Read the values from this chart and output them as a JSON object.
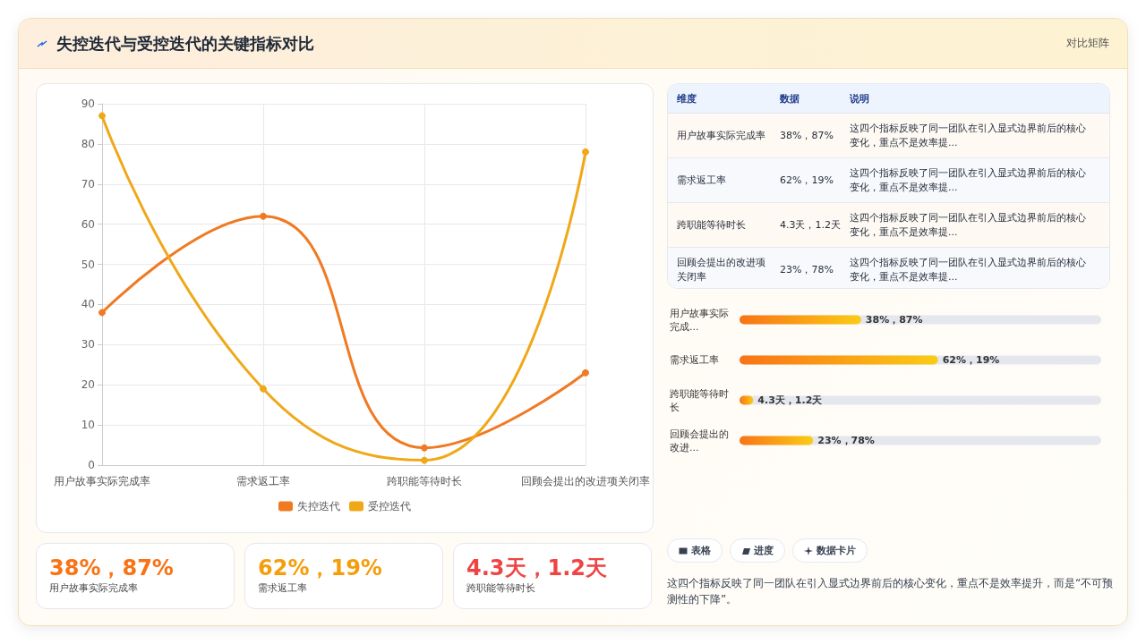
{
  "chart_data": [
    {
      "type": "line",
      "title": "失控迭代与受控迭代的关键指标对比",
      "annotations": [
        "对比矩阵"
      ],
      "categories": [
        "用户故事实际完成率",
        "需求返工率",
        "跨职能等待时长",
        "回顾会提出的改进项关闭率"
      ],
      "series": [
        {
          "name": "失控迭代",
          "color": "#f07a22",
          "values": [
            38,
            62,
            4.3,
            23
          ]
        },
        {
          "name": "受控迭代",
          "color": "#f0a818",
          "values": [
            87,
            19,
            1.2,
            78
          ]
        }
      ],
      "ylim": [
        0,
        90
      ],
      "yticks": [
        0,
        10,
        20,
        30,
        40,
        50,
        60,
        70,
        80,
        90
      ],
      "grid": true,
      "legend": "bottom",
      "marker": "circle"
    },
    {
      "type": "other",
      "categories": [
        "维度",
        "数据",
        "说明"
      ],
      "cell_labels": [
        [
          "用户故事实际完成率",
          "38%，87%",
          "这四个指标反映了同一团队在引入显式边界前后的核心变化，重点不是效率提..."
        ],
        [
          "需求返工率",
          "62%，19%",
          "这四个指标反映了同一团队在引入显式边界前后的核心变化，重点不是效率提..."
        ],
        [
          "跨职能等待时长",
          "4.3天，1.2天",
          "这四个指标反映了同一团队在引入显式边界前后的核心变化，重点不是效率提..."
        ],
        [
          "回顾会提出的改进项关闭率",
          "23%，78%",
          "这四个指标反映了同一团队在引入显式边界前后的核心变化，重点不是效率提..."
        ]
      ]
    },
    {
      "type": "bar",
      "orientation": "horizontal",
      "color": "#f97316",
      "categories": [
        "用户故事实际完成...",
        "需求返工率",
        "跨职能等待时长",
        "回顾会提出的改进..."
      ],
      "values": [
        38,
        62,
        4.3,
        23
      ],
      "xlim": [
        0,
        113
      ],
      "value_labels": [
        "38%，87%",
        "62%，19%",
        "4.3天，1.2天",
        "23%，78%"
      ]
    },
    {
      "type": "other",
      "categories": [
        "用户故事实际完成率",
        "需求返工率",
        "跨职能等待时长"
      ],
      "value_labels": [
        "38%，87%",
        "62%，19%",
        "4.3天，1.2天"
      ]
    },
    {
      "type": "other",
      "annotations": [
        "表格",
        "进度",
        "数据卡片",
        "这四个指标反映了同一团队在引入显式边界前后的核心变化，重点不是效率提升，而是“不可预测性的下降”。"
      ]
    }
  ]
}
